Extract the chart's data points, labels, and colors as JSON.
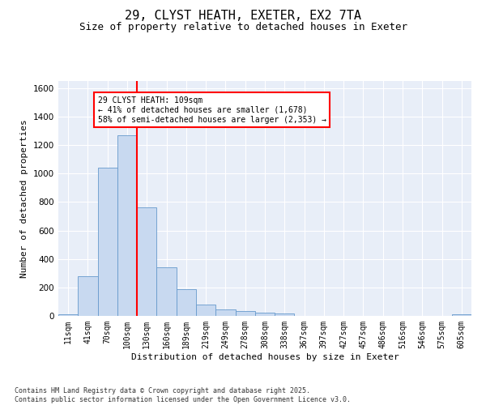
{
  "title_line1": "29, CLYST HEATH, EXETER, EX2 7TA",
  "title_line2": "Size of property relative to detached houses in Exeter",
  "xlabel": "Distribution of detached houses by size in Exeter",
  "ylabel": "Number of detached properties",
  "categories": [
    "11sqm",
    "41sqm",
    "70sqm",
    "100sqm",
    "130sqm",
    "160sqm",
    "189sqm",
    "219sqm",
    "249sqm",
    "278sqm",
    "308sqm",
    "338sqm",
    "367sqm",
    "397sqm",
    "427sqm",
    "457sqm",
    "486sqm",
    "516sqm",
    "546sqm",
    "575sqm",
    "605sqm"
  ],
  "bar_heights": [
    10,
    280,
    1040,
    1270,
    760,
    340,
    190,
    80,
    45,
    35,
    25,
    15,
    0,
    0,
    0,
    0,
    0,
    0,
    0,
    0,
    10
  ],
  "ylim": [
    0,
    1650
  ],
  "yticks": [
    0,
    200,
    400,
    600,
    800,
    1000,
    1200,
    1400,
    1600
  ],
  "bar_color": "#c8d9f0",
  "bar_edge_color": "#6699cc",
  "bar_edge_width": 0.6,
  "vline_color": "red",
  "vline_x": 3.5,
  "annotation_text": "29 CLYST HEATH: 109sqm\n← 41% of detached houses are smaller (1,678)\n58% of semi-detached houses are larger (2,353) →",
  "annotation_box_color": "red",
  "annotation_bg": "white",
  "footnote": "Contains HM Land Registry data © Crown copyright and database right 2025.\nContains public sector information licensed under the Open Government Licence v3.0.",
  "bg_color": "#e8eef8",
  "grid_color": "white"
}
